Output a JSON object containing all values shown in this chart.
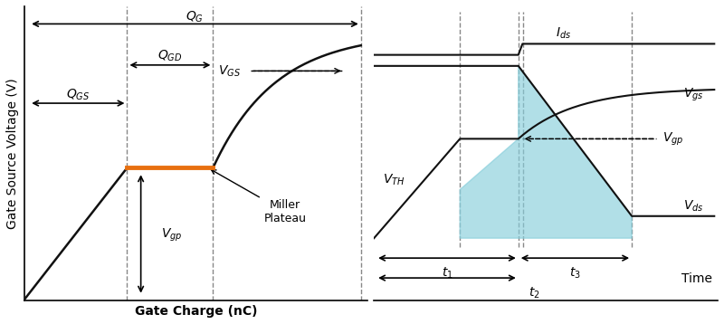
{
  "left_chart": {
    "xlabel": "Gate Charge (nC)",
    "ylabel": "Gate Source Voltage (V)",
    "xlim": [
      0,
      10
    ],
    "ylim": [
      0,
      10
    ],
    "miller_plateau_y": 4.5,
    "miller_x_start": 3.0,
    "miller_x_end": 5.5,
    "x_max": 9.8,
    "miller_color": "#E87010",
    "dashed_color": "#888888"
  },
  "right_chart": {
    "xlim": [
      0,
      10
    ],
    "ylim": [
      0,
      10
    ],
    "t1_x": 2.5,
    "t2_x": 4.2,
    "t3_x": 7.5,
    "Ids_level": 8.8,
    "Vds_high": 7.8,
    "Vds_low": 1.0,
    "Vgs_plateau": 4.5,
    "Vgs_final": 6.8,
    "VTH_level": 2.2,
    "cyan_color": "#87CEDB",
    "dashed_color": "#888888"
  },
  "background_color": "#ffffff",
  "line_color": "#111111",
  "fontsize": 10
}
